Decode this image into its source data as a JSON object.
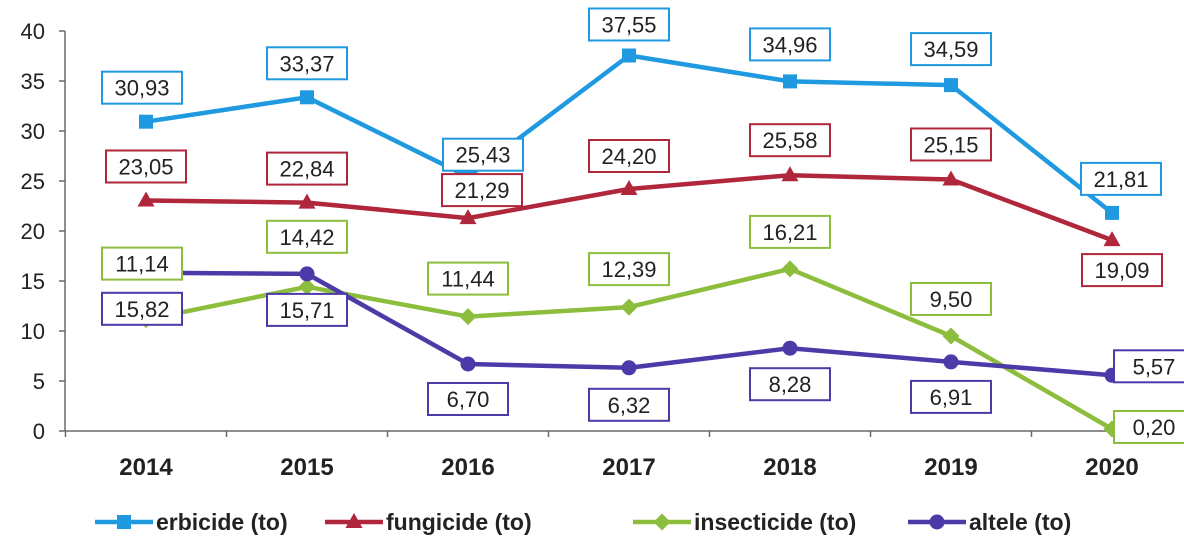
{
  "chart_data": {
    "type": "line",
    "title": "",
    "xlabel": "",
    "ylabel": "",
    "categories": [
      "2014",
      "2015",
      "2016",
      "2017",
      "2018",
      "2019",
      "2020"
    ],
    "ylim": [
      0,
      40
    ],
    "yticks": [
      "0",
      "5",
      "10",
      "15",
      "20",
      "25",
      "30",
      "35",
      "40"
    ],
    "grid": false,
    "legend_position": "bottom",
    "series": [
      {
        "name": "erbicide (to)",
        "color": "#1f9ae0",
        "marker": "square",
        "values": [
          30.93,
          33.37,
          25.43,
          37.55,
          34.96,
          34.59,
          21.81
        ],
        "labels": [
          "30,93",
          "33,37",
          "25,43",
          "37,55",
          "34,96",
          "34,59",
          "21,81"
        ]
      },
      {
        "name": "fungicide (to)",
        "color": "#b0263a",
        "marker": "triangle",
        "values": [
          23.05,
          22.84,
          21.29,
          24.2,
          25.58,
          25.15,
          19.09
        ],
        "labels": [
          "23,05",
          "22,84",
          "21,29",
          "24,20",
          "25,58",
          "25,15",
          "19,09"
        ]
      },
      {
        "name": "insecticide (to)",
        "color": "#8dbd3c",
        "marker": "diamond",
        "values": [
          11.14,
          14.42,
          11.44,
          12.39,
          16.21,
          9.5,
          0.2
        ],
        "labels": [
          "11,14",
          "14,42",
          "11,44",
          "12,39",
          "16,21",
          "9,50",
          "0,20"
        ]
      },
      {
        "name": "altele (to)",
        "color": "#4b3aa8",
        "marker": "circle",
        "values": [
          15.82,
          15.71,
          6.7,
          6.32,
          8.28,
          6.91,
          5.57
        ],
        "labels": [
          "15,82",
          "15,71",
          "6,70",
          "6,32",
          "8,28",
          "6,91",
          "5,57"
        ]
      }
    ]
  }
}
